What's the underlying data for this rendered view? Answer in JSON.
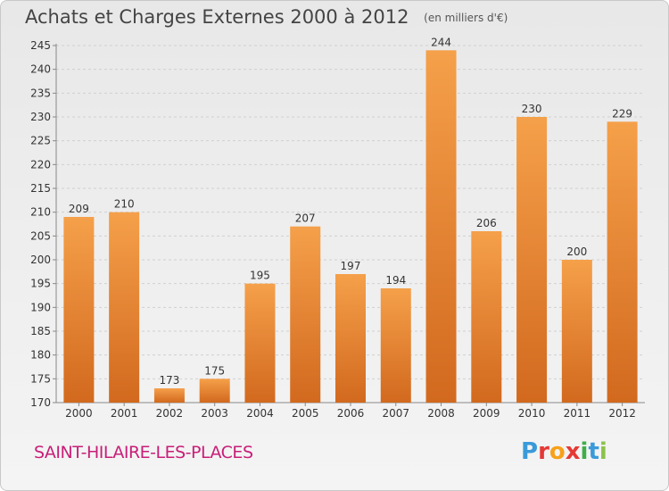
{
  "title": "Achats et Charges Externes 2000 à 2012",
  "unit_label": "(en milliers d'€)",
  "commune": "SAINT-HILAIRE-LES-PLACES",
  "logo": {
    "letters": [
      "P",
      "r",
      "o",
      "x",
      "i",
      "t",
      "i"
    ],
    "colors": [
      "#3a9ad9",
      "#e53935",
      "#f7a11a",
      "#e53935",
      "#3fae49",
      "#3a9ad9",
      "#8bc34a"
    ]
  },
  "colors": {
    "bar_top": "#f5a04a",
    "bar_bottom": "#d2691e",
    "commune_text": "#c81e78"
  },
  "chart_data": {
    "type": "bar",
    "title": "Achats et Charges Externes 2000 à 2012",
    "categories": [
      "2000",
      "2001",
      "2002",
      "2003",
      "2004",
      "2005",
      "2006",
      "2007",
      "2008",
      "2009",
      "2010",
      "2011",
      "2012"
    ],
    "values": [
      209,
      210,
      173,
      175,
      195,
      207,
      197,
      194,
      244,
      206,
      230,
      200,
      229
    ],
    "ylim": [
      170,
      245
    ],
    "yticks": [
      170,
      175,
      180,
      185,
      190,
      195,
      200,
      205,
      210,
      215,
      220,
      225,
      230,
      235,
      240,
      245
    ],
    "grid": "horizontal-dashed",
    "xlabel": "",
    "ylabel": ""
  }
}
